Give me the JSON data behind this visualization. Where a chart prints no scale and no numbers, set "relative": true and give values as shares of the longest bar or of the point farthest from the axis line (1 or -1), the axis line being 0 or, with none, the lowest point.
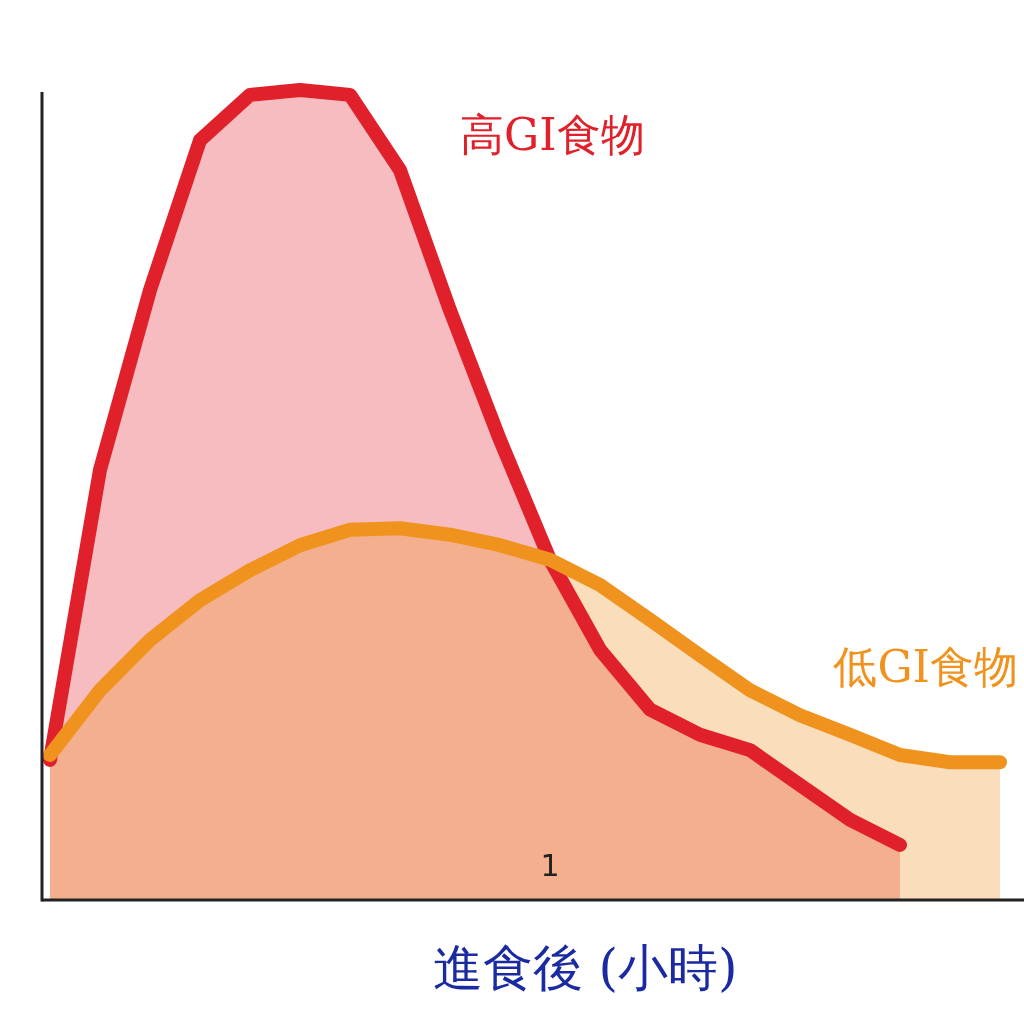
{
  "chart_data": {
    "type": "area",
    "relative": true,
    "xlabel": "進食後 (小時)",
    "categories": [
      null,
      null,
      null,
      null,
      null,
      null,
      null,
      null,
      null,
      null,
      null,
      null,
      null,
      null,
      null,
      null,
      null,
      null,
      null,
      null
    ],
    "series": [
      {
        "name": "高GI食物",
        "color": "#e0202a",
        "values": [
          0.173,
          0.531,
          0.753,
          0.938,
          0.994,
          1,
          0.994,
          0.901,
          0.728,
          0.568,
          0.42,
          0.309,
          0.235,
          0.204,
          0.185,
          0.142,
          0.099,
          0.068,
          null,
          null
        ]
      },
      {
        "name": "低GI食物",
        "color": "#f0921e",
        "values": [
          0.179,
          0.259,
          0.321,
          0.37,
          0.407,
          0.438,
          0.457,
          0.459,
          0.451,
          0.438,
          0.42,
          0.389,
          0.346,
          0.302,
          0.259,
          0.228,
          0.204,
          0.179,
          0.17,
          0.17
        ]
      }
    ],
    "annotations": [
      "1"
    ],
    "legend": false
  }
}
